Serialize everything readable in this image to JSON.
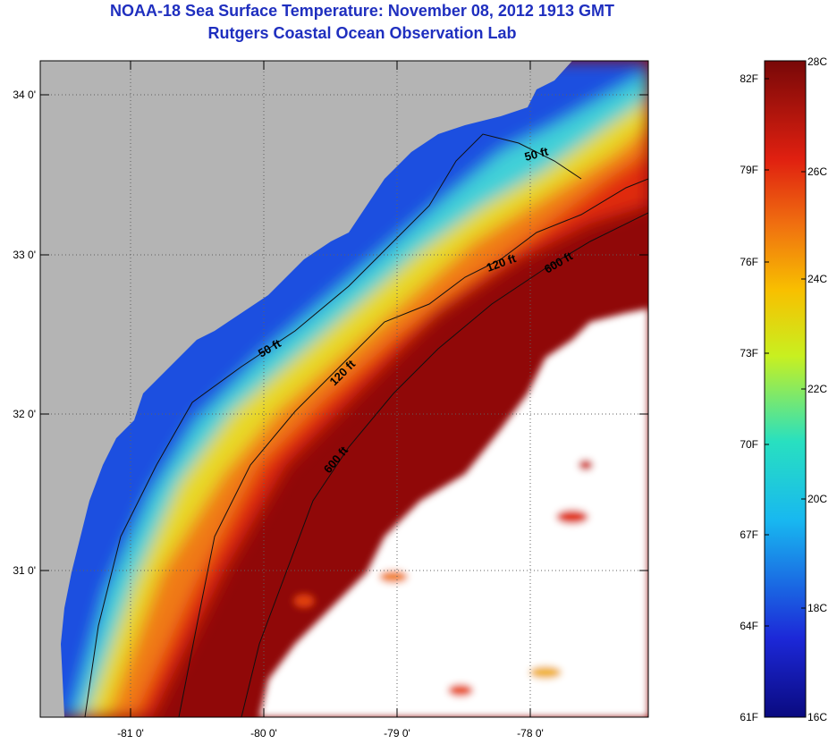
{
  "header": {
    "title": "NOAA-18 Sea Surface Temperature:  November 08, 2012 1913 GMT",
    "subtitle": "Rutgers Coastal Ocean Observation Lab"
  },
  "map": {
    "lat_ticks": [
      "34 0'",
      "33 0'",
      "32 0'",
      "31 0'"
    ],
    "lon_ticks": [
      "-81 0'",
      "-80 0'",
      "-79 0'",
      "-78 0'"
    ],
    "contour_labels": [
      "50 ft",
      "120 ft",
      "600 ft",
      "50 ft",
      "120 ft",
      "600 ft"
    ],
    "colors": {
      "land": "#b4b4b4",
      "coastal_cold": "#1e3cd0",
      "shelf": "#36c8e8",
      "mid": "#f0d020",
      "warm": "#e83010",
      "gulf_stream": "#900808",
      "cloud": "#ffffff"
    }
  },
  "colorbar": {
    "f_labels": [
      "82F",
      "79F",
      "76F",
      "73F",
      "70F",
      "67F",
      "64F",
      "61F"
    ],
    "c_labels": [
      "28C",
      "26C",
      "24C",
      "22C",
      "20C",
      "18C",
      "16C"
    ]
  }
}
